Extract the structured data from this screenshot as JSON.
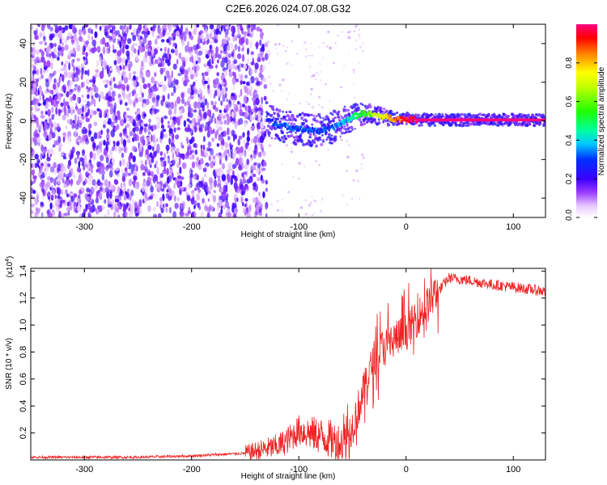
{
  "title": "C2E6.2026.024.07.08.G32",
  "chart_data": [
    {
      "type": "heatmap",
      "xlabel": "Height of straight line (km)",
      "ylabel": "Frequency (Hz)",
      "xlim": [
        -350,
        130
      ],
      "ylim": [
        -50,
        50
      ],
      "xticks": [
        -300,
        -200,
        -100,
        0,
        100
      ],
      "yticks": [
        -40,
        -20,
        0,
        20,
        40
      ],
      "noise_region_x": [
        -350,
        -130
      ],
      "signal_trace": {
        "x": [
          -130,
          -120,
          -110,
          -100,
          -90,
          -80,
          -70,
          -60,
          -50,
          -40,
          -30,
          -20,
          -10,
          0,
          10,
          130
        ],
        "y": [
          1,
          -2,
          -3,
          -4,
          -5,
          -5,
          -4,
          -1,
          2,
          4,
          3,
          2,
          1,
          1,
          0.5,
          0.5
        ],
        "amplitude": [
          0.25,
          0.3,
          0.3,
          0.28,
          0.3,
          0.3,
          0.3,
          0.35,
          0.45,
          0.55,
          0.65,
          0.75,
          0.85,
          0.95,
          1.0,
          1.0
        ]
      },
      "colorbar": {
        "label": "Normalized spectral amplitude",
        "ticks": [
          "0.0",
          "0.2",
          "0.4",
          "0.6",
          "0.8"
        ],
        "range": [
          0,
          1
        ]
      }
    },
    {
      "type": "line",
      "xlabel": "Height of straight line (km)",
      "ylabel": "SNR (10 * v/v)",
      "multiplier_label": "(x10",
      "multiplier_exp": "4",
      "xlim": [
        -350,
        130
      ],
      "ylim": [
        0,
        1.42
      ],
      "xticks": [
        -300,
        -200,
        -100,
        0,
        100
      ],
      "yticks": [
        "0.2",
        "0.4",
        "0.6",
        "0.8",
        "1.0",
        "1.2",
        "1.4"
      ],
      "series": [
        {
          "name": "SNR",
          "color": "#ee2222",
          "x": [
            -350,
            -300,
            -250,
            -200,
            -150,
            -120,
            -110,
            -100,
            -90,
            -80,
            -70,
            -60,
            -50,
            -40,
            -30,
            -20,
            -10,
            0,
            10,
            20,
            30,
            40,
            60,
            80,
            100,
            130
          ],
          "y": [
            0.02,
            0.02,
            0.02,
            0.03,
            0.05,
            0.1,
            0.15,
            0.22,
            0.2,
            0.18,
            0.15,
            0.12,
            0.25,
            0.5,
            0.75,
            0.85,
            0.9,
            0.95,
            1.05,
            1.15,
            1.25,
            1.35,
            1.33,
            1.3,
            1.28,
            1.25
          ]
        }
      ]
    }
  ]
}
